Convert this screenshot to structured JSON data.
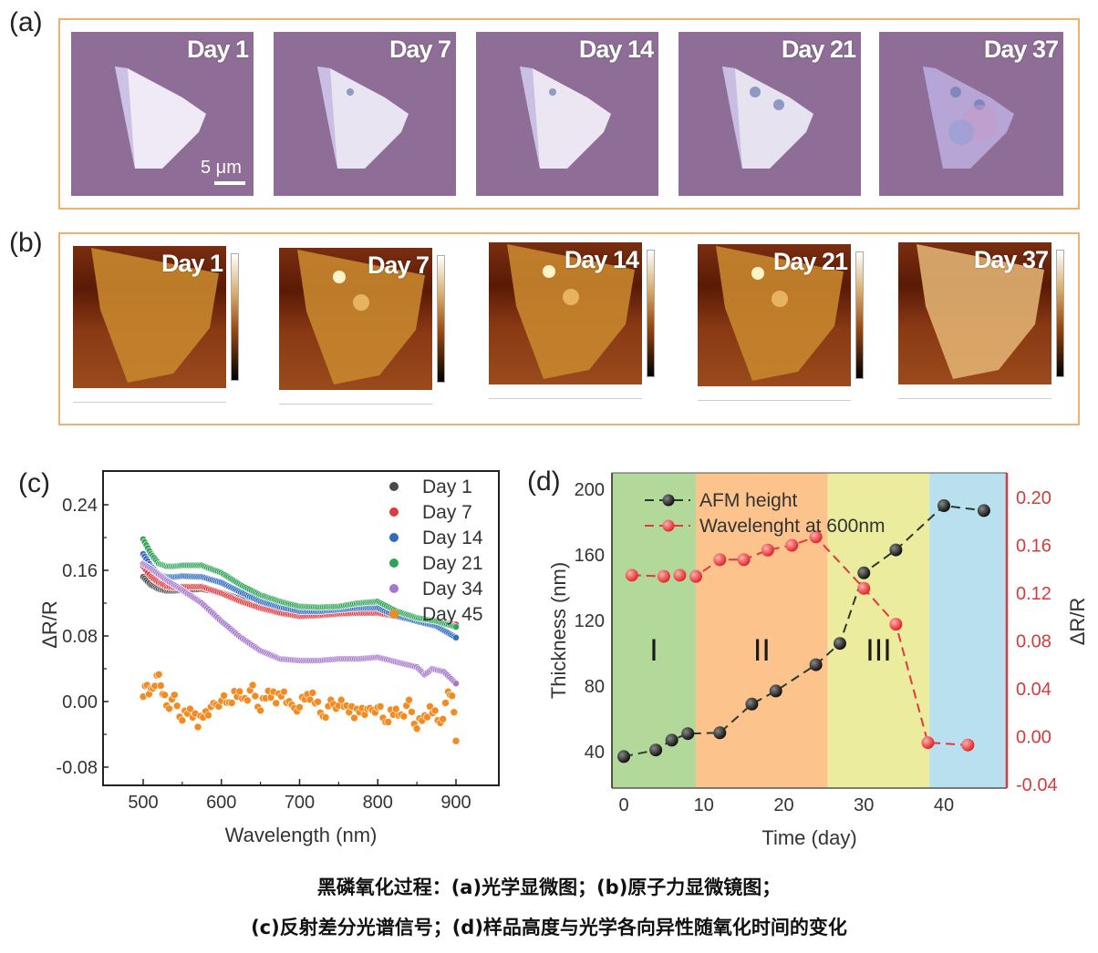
{
  "panels": {
    "a": {
      "label": "(a)",
      "scale_bar": "5 μm",
      "tiles": [
        {
          "day": "Day 1"
        },
        {
          "day": "Day 7"
        },
        {
          "day": "Day 14"
        },
        {
          "day": "Day 21"
        },
        {
          "day": "Day 37"
        }
      ]
    },
    "b": {
      "label": "(b)",
      "tiles": [
        {
          "day": "Day 1"
        },
        {
          "day": "Day 7"
        },
        {
          "day": "Day 14"
        },
        {
          "day": "Day 21"
        },
        {
          "day": "Day 37"
        }
      ]
    },
    "c": {
      "label": "(c)"
    },
    "d": {
      "label": "(d)"
    }
  },
  "caption": {
    "line1": "黑磷氧化过程：(a)光学显微图；(b)原子力显微镜图；",
    "line2": "(c)反射差分光谱信号；(d)样品高度与光学各向异性随氧化时间的变化"
  },
  "colors": {
    "frame": "#f0b070",
    "day1": "#4a4a4a",
    "day7": "#e0393e",
    "day14": "#2f6bc0",
    "day21": "#2fa356",
    "day34": "#a678cc",
    "day45": "#f28c22",
    "afm": "#1a1a1a",
    "wavelength": "#e0393e",
    "right_axis": "#d63a3a",
    "region_I": "#b3d99a",
    "region_II": "#fcc48c",
    "region_III": "#ecec9e",
    "region_IV": "#b8e0ee"
  },
  "chart_data": [
    {
      "id": "c",
      "type": "scatter",
      "title": "",
      "xlabel": "Wavelength (nm)",
      "ylabel": "ΔR/R",
      "xlim": [
        450,
        950
      ],
      "ylim": [
        -0.1,
        0.28
      ],
      "xticks": [
        500,
        600,
        700,
        800,
        900
      ],
      "yticks": [
        -0.08,
        0.0,
        0.08,
        0.16,
        0.24
      ],
      "ytick_labels": [
        "-0.08",
        "0.00",
        "0.08",
        "0.16",
        "0.24"
      ],
      "legend": "top-right",
      "grid": false,
      "series": [
        {
          "name": "Day 1",
          "x": [
            500,
            510,
            520,
            530,
            540,
            550,
            575,
            600,
            625,
            650,
            675,
            700,
            725,
            750,
            775,
            800,
            825,
            850,
            875,
            900
          ],
          "y": [
            0.152,
            0.142,
            0.137,
            0.135,
            0.135,
            0.136,
            0.137,
            0.133,
            0.125,
            0.118,
            0.112,
            0.108,
            0.107,
            0.108,
            0.11,
            0.11,
            0.105,
            0.1,
            0.098,
            0.092
          ]
        },
        {
          "name": "Day 7",
          "x": [
            500,
            510,
            520,
            530,
            540,
            550,
            575,
            600,
            625,
            650,
            675,
            700,
            725,
            750,
            775,
            800,
            825,
            850,
            875,
            900
          ],
          "y": [
            0.165,
            0.152,
            0.145,
            0.14,
            0.139,
            0.14,
            0.14,
            0.132,
            0.122,
            0.114,
            0.108,
            0.104,
            0.105,
            0.107,
            0.108,
            0.108,
            0.104,
            0.1,
            0.098,
            0.094
          ]
        },
        {
          "name": "Day 14",
          "x": [
            500,
            510,
            520,
            530,
            540,
            550,
            575,
            600,
            625,
            650,
            675,
            700,
            725,
            750,
            775,
            800,
            825,
            850,
            875,
            900
          ],
          "y": [
            0.18,
            0.165,
            0.155,
            0.152,
            0.152,
            0.153,
            0.152,
            0.145,
            0.133,
            0.122,
            0.115,
            0.11,
            0.11,
            0.112,
            0.114,
            0.114,
            0.104,
            0.098,
            0.092,
            0.078
          ]
        },
        {
          "name": "Day 21",
          "x": [
            500,
            510,
            520,
            530,
            540,
            550,
            575,
            600,
            625,
            650,
            675,
            700,
            725,
            750,
            775,
            800,
            825,
            850,
            875,
            900
          ],
          "y": [
            0.198,
            0.18,
            0.168,
            0.165,
            0.165,
            0.166,
            0.166,
            0.157,
            0.142,
            0.13,
            0.122,
            0.116,
            0.115,
            0.116,
            0.12,
            0.122,
            0.11,
            0.102,
            0.098,
            0.091
          ]
        },
        {
          "name": "Day 34",
          "x": [
            500,
            510,
            520,
            530,
            540,
            550,
            575,
            600,
            625,
            650,
            675,
            700,
            725,
            750,
            775,
            800,
            825,
            850,
            860,
            870,
            885,
            900
          ],
          "y": [
            0.168,
            0.162,
            0.155,
            0.148,
            0.142,
            0.136,
            0.12,
            0.098,
            0.078,
            0.062,
            0.052,
            0.05,
            0.05,
            0.052,
            0.052,
            0.054,
            0.048,
            0.042,
            0.033,
            0.04,
            0.036,
            0.022
          ]
        },
        {
          "name": "Day 45",
          "x": [
            500,
            505,
            510,
            515,
            520,
            525,
            530,
            540,
            550,
            560,
            570,
            580,
            590,
            600,
            610,
            620,
            630,
            640,
            650,
            660,
            670,
            680,
            690,
            700,
            710,
            720,
            730,
            740,
            750,
            760,
            770,
            780,
            790,
            800,
            810,
            820,
            830,
            840,
            850,
            860,
            870,
            880,
            890,
            895,
            900
          ],
          "y": [
            0.012,
            0.02,
            0.01,
            0.022,
            0.03,
            0.015,
            -0.005,
            0.002,
            -0.02,
            -0.012,
            -0.025,
            -0.012,
            -0.008,
            0.004,
            -0.004,
            0.012,
            0.004,
            0.014,
            -0.008,
            0.01,
            0.004,
            0.012,
            -0.01,
            -0.004,
            0.006,
            0.004,
            -0.018,
            -0.004,
            -0.002,
            -0.008,
            -0.014,
            -0.008,
            -0.014,
            -0.004,
            -0.028,
            -0.01,
            -0.016,
            -0.004,
            -0.03,
            -0.02,
            -0.008,
            -0.026,
            0.006,
            0.01,
            -0.048
          ]
        }
      ]
    },
    {
      "id": "d",
      "type": "line",
      "title": "",
      "xlabel": "Time (day)",
      "ylabel": "Thickness (nm)",
      "ylabel_right": "ΔR/R",
      "xlim": [
        -1.5,
        48
      ],
      "ylim": [
        20,
        210
      ],
      "ylim_right": [
        -0.04,
        0.215
      ],
      "xticks": [
        0,
        10,
        20,
        30,
        40
      ],
      "yticks": [
        40,
        80,
        120,
        160,
        200
      ],
      "yticks_right": [
        -0.04,
        0.0,
        0.04,
        0.08,
        0.12,
        0.16,
        0.2
      ],
      "ytick_labels_right": [
        "-0.04",
        "0.00",
        "0.04",
        "0.08",
        "0.12",
        "0.16",
        "0.20"
      ],
      "legend": "top-left",
      "regions": [
        {
          "label": "I",
          "from": -1.5,
          "to": 9
        },
        {
          "label": "II",
          "from": 9,
          "to": 25.5
        },
        {
          "label": "III",
          "from": 25.5,
          "to": 38.2
        },
        {
          "label": "",
          "from": 38.2,
          "to": 48
        }
      ],
      "series": [
        {
          "name": "AFM height",
          "axis": "left",
          "x": [
            0,
            4,
            6,
            8,
            12,
            16,
            19,
            24,
            27,
            30,
            34,
            40,
            45
          ],
          "y": [
            37,
            41,
            47,
            51,
            51.5,
            69,
            77,
            93,
            106,
            149,
            163,
            190,
            187
          ]
        },
        {
          "name": "Wavelenght at 600nm",
          "axis": "right",
          "x": [
            1,
            5,
            7,
            9,
            12,
            15,
            18,
            21,
            24,
            30,
            34,
            38,
            43
          ],
          "y": [
            0.135,
            0.134,
            0.135,
            0.134,
            0.148,
            0.148,
            0.156,
            0.16,
            0.167,
            0.124,
            0.094,
            -0.005,
            -0.007
          ]
        }
      ]
    }
  ]
}
